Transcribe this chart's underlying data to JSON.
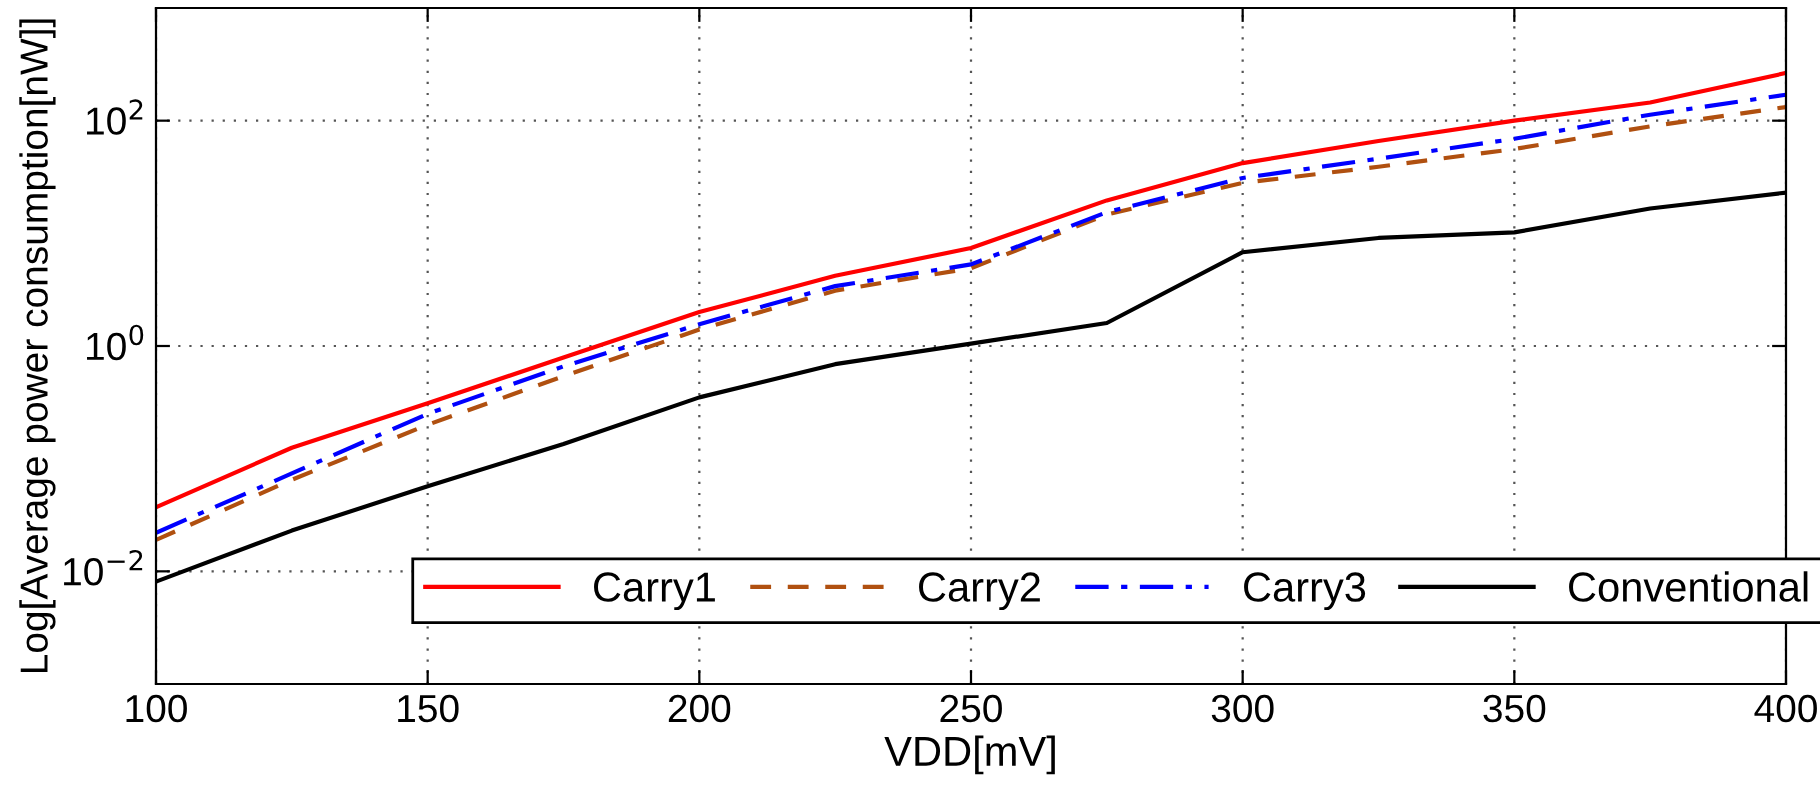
{
  "chart_data": {
    "type": "line",
    "xlabel": "VDD[mV]",
    "ylabel": "Log[Average power consumption[nW]]",
    "x": [
      100,
      125,
      150,
      175,
      200,
      225,
      250,
      275,
      300,
      325,
      350,
      375,
      400
    ],
    "series": [
      {
        "name": "Carry1",
        "color": "#ff0000",
        "line_style": "solid",
        "values": [
          0.037,
          0.125,
          0.31,
          0.79,
          2.0,
          4.2,
          7.4,
          19.6,
          42,
          66,
          100,
          145,
          265
        ]
      },
      {
        "name": "Carry2",
        "color": "#b05010",
        "line_style": "dashed",
        "values": [
          0.019,
          0.065,
          0.2,
          0.54,
          1.4,
          3.1,
          4.9,
          14.7,
          28,
          39,
          56,
          89,
          132
        ]
      },
      {
        "name": "Carry3",
        "color": "#0000ff",
        "line_style": "dashdot",
        "values": [
          0.022,
          0.074,
          0.25,
          0.66,
          1.56,
          3.4,
          5.3,
          15.4,
          31,
          46,
          69,
          113,
          170
        ]
      },
      {
        "name": "Conventional",
        "color": "#000000",
        "line_style": "solid",
        "values": [
          0.0081,
          0.023,
          0.057,
          0.135,
          0.35,
          0.69,
          1.05,
          1.6,
          6.8,
          9.1,
          10.2,
          16.6,
          23
        ]
      }
    ],
    "log": "y",
    "xlim": [
      100,
      400
    ],
    "xticks": [
      100,
      150,
      200,
      250,
      300,
      350,
      400
    ],
    "ylim": [
      0.001,
      1000
    ],
    "yticks": [
      {
        "value": 0.01,
        "label": "10$^{−2}$"
      },
      {
        "value": 1,
        "label": "10$^{0}$"
      },
      {
        "value": 100,
        "label": "10$^{2}$"
      }
    ],
    "grid": true,
    "legend": "bottom",
    "marker": "none"
  }
}
